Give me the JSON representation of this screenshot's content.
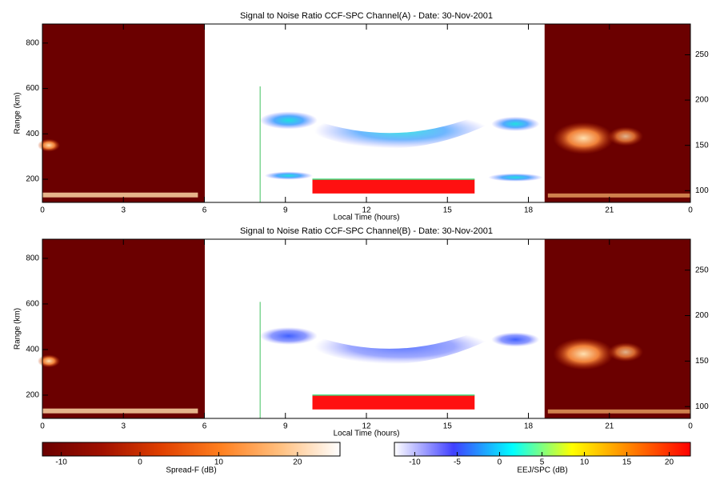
{
  "chart_data": [
    {
      "type": "heatmap",
      "title": "Signal to Noise Ratio CCF-SPC Channel(A) - Date: 30-Nov-2001",
      "xlabel": "Local Time (hours)",
      "ylabel": "Range (km)",
      "xlim": [
        0,
        24
      ],
      "xticks": [
        0,
        3,
        6,
        9,
        12,
        15,
        18,
        21,
        {
          "value": 24,
          "label": "0"
        }
      ],
      "ylim": [
        98,
        884
      ],
      "yticks": [
        200,
        400,
        600,
        800
      ],
      "y2lim": [
        87,
        284
      ],
      "y2ticks": [
        100,
        150,
        200,
        250
      ]
    },
    {
      "type": "heatmap",
      "title": "Signal to Noise Ratio CCF-SPC Channel(B) - Date: 30-Nov-2001",
      "xlabel": "Local Time (hours)",
      "ylabel": "Range (km)",
      "xlim": [
        0,
        24
      ],
      "xticks": [
        0,
        3,
        6,
        9,
        12,
        15,
        18,
        21,
        {
          "value": 24,
          "label": "0"
        }
      ],
      "ylim": [
        98,
        884
      ],
      "yticks": [
        200,
        400,
        600,
        800
      ],
      "y2lim": [
        87,
        284
      ],
      "y2ticks": [
        100,
        150,
        200,
        250
      ]
    }
  ],
  "colorbars": [
    {
      "label": "Spread-F (dB)",
      "lim": [
        -12.4,
        25.4
      ],
      "ticks": [
        -10,
        0,
        10,
        20
      ],
      "colors": [
        "#6b0000",
        "#a01000",
        "#e04000",
        "#ff8020",
        "#ffc080",
        "#ffffff"
      ]
    },
    {
      "label": "EEJ/SPC (dB)",
      "lim": [
        -12.4,
        22.5
      ],
      "ticks": [
        -10,
        -5,
        0,
        5,
        10,
        15,
        20
      ],
      "colors": [
        "#ffffff",
        "#4040ff",
        "#00ffff",
        "#ffff00",
        "#ff8000",
        "#ff0000"
      ]
    }
  ]
}
